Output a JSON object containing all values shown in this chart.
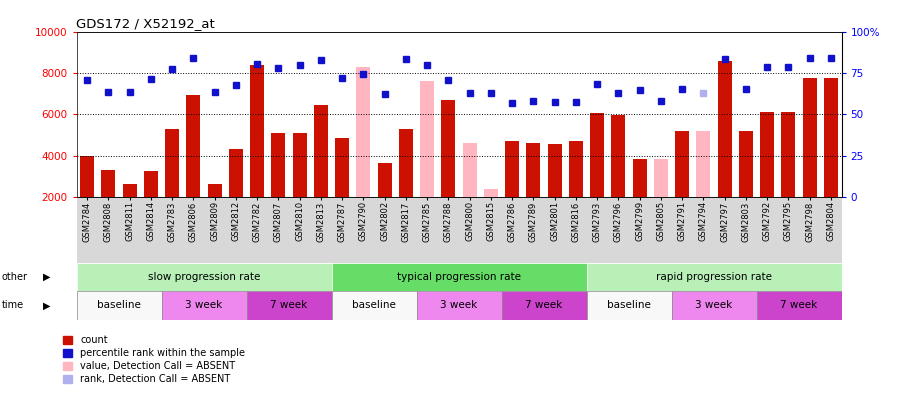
{
  "title": "GDS172 / X52192_at",
  "samples": [
    "GSM2784",
    "GSM2808",
    "GSM2811",
    "GSM2814",
    "GSM2783",
    "GSM2806",
    "GSM2809",
    "GSM2812",
    "GSM2782",
    "GSM2807",
    "GSM2810",
    "GSM2813",
    "GSM2787",
    "GSM2790",
    "GSM2802",
    "GSM2817",
    "GSM2785",
    "GSM2788",
    "GSM2800",
    "GSM2815",
    "GSM2786",
    "GSM2789",
    "GSM2801",
    "GSM2816",
    "GSM2793",
    "GSM2796",
    "GSM2799",
    "GSM2805",
    "GSM2791",
    "GSM2794",
    "GSM2797",
    "GSM2803",
    "GSM2792",
    "GSM2795",
    "GSM2798",
    "GSM2804"
  ],
  "bar_values": [
    4000,
    3300,
    2650,
    3250,
    5300,
    6950,
    2650,
    4350,
    8400,
    5100,
    5100,
    6450,
    4850,
    8300,
    3650,
    5300,
    7600,
    6700,
    4600,
    2400,
    4700,
    4600,
    4550,
    4700,
    6050,
    5950,
    3850,
    3850,
    5200,
    5200,
    8600,
    5200,
    6100,
    6100,
    7750,
    7750
  ],
  "bar_absent": [
    false,
    false,
    false,
    false,
    false,
    false,
    false,
    false,
    false,
    false,
    false,
    false,
    false,
    true,
    false,
    false,
    true,
    false,
    true,
    true,
    false,
    false,
    false,
    false,
    false,
    false,
    false,
    true,
    false,
    true,
    false,
    false,
    false,
    false,
    false,
    false
  ],
  "rank_values": [
    7650,
    7100,
    7100,
    7700,
    8200,
    8750,
    7100,
    7400,
    8450,
    8250,
    8400,
    8650,
    7750,
    7950,
    7000,
    8700,
    8400,
    7650,
    7050,
    7050,
    6550,
    6650,
    6600,
    6600,
    7450,
    7050,
    7200,
    6650,
    7250,
    7050,
    8700,
    7250,
    8300,
    8300,
    8750,
    8750
  ],
  "rank_absent": [
    false,
    false,
    false,
    false,
    false,
    false,
    false,
    false,
    false,
    false,
    false,
    false,
    false,
    false,
    false,
    false,
    false,
    false,
    false,
    false,
    false,
    false,
    false,
    false,
    false,
    false,
    false,
    false,
    false,
    true,
    false,
    false,
    false,
    false,
    false,
    false
  ],
  "bar_color_present": "#cc1100",
  "bar_color_absent": "#ffb6c1",
  "rank_color_present": "#1111cc",
  "rank_color_absent": "#b0b0ee",
  "ymin": 2000,
  "ymax": 10000,
  "yticks": [
    2000,
    4000,
    6000,
    8000,
    10000
  ],
  "ytick_labels": [
    "2000",
    "4000",
    "6000",
    "8000",
    "10000"
  ],
  "rticks": [
    0,
    25,
    50,
    75,
    100
  ],
  "rtick_labels": [
    "0",
    "25",
    "50",
    "75",
    "100%"
  ],
  "grid_values": [
    4000,
    6000,
    8000
  ],
  "progression_groups": [
    {
      "label": "slow progression rate",
      "start": 0,
      "end": 12,
      "color": "#b8f0b8"
    },
    {
      "label": "typical progression rate",
      "start": 12,
      "end": 24,
      "color": "#66dd66"
    },
    {
      "label": "rapid progression rate",
      "start": 24,
      "end": 36,
      "color": "#b8f0b8"
    }
  ],
  "time_groups": [
    {
      "label": "baseline",
      "start": 0,
      "end": 4,
      "color": "#f8f8f8"
    },
    {
      "label": "3 week",
      "start": 4,
      "end": 8,
      "color": "#ee88ee"
    },
    {
      "label": "7 week",
      "start": 8,
      "end": 12,
      "color": "#cc44cc"
    },
    {
      "label": "baseline",
      "start": 12,
      "end": 16,
      "color": "#f8f8f8"
    },
    {
      "label": "3 week",
      "start": 16,
      "end": 20,
      "color": "#ee88ee"
    },
    {
      "label": "7 week",
      "start": 20,
      "end": 24,
      "color": "#cc44cc"
    },
    {
      "label": "baseline",
      "start": 24,
      "end": 28,
      "color": "#f8f8f8"
    },
    {
      "label": "3 week",
      "start": 28,
      "end": 32,
      "color": "#ee88ee"
    },
    {
      "label": "7 week",
      "start": 32,
      "end": 36,
      "color": "#cc44cc"
    }
  ],
  "legend_items": [
    {
      "label": "count",
      "color": "#cc1100"
    },
    {
      "label": "percentile rank within the sample",
      "color": "#1111cc"
    },
    {
      "label": "value, Detection Call = ABSENT",
      "color": "#ffb6c1"
    },
    {
      "label": "rank, Detection Call = ABSENT",
      "color": "#b0b0ee"
    }
  ]
}
